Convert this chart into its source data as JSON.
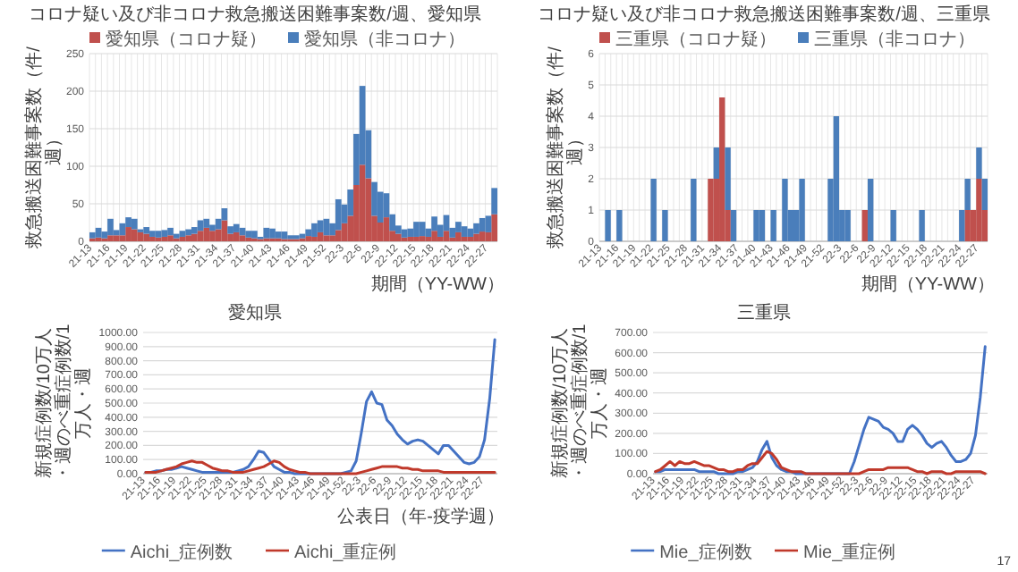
{
  "chart_data": [
    {
      "type": "bar",
      "title": "コロナ疑い及び非コロナ救急搬送困難事案数/週、愛知県",
      "xlabel": "期間（YY-WW）",
      "ylabel": "救急搬送困難事案数（件/週）",
      "stacked": true,
      "ylim": [
        0,
        250
      ],
      "yticks": [
        0,
        50,
        100,
        150,
        200,
        250
      ],
      "grid": true,
      "legend": "top left",
      "categories": [
        "21-13",
        null,
        null,
        "21-16",
        null,
        null,
        "21-19",
        null,
        null,
        "21-22",
        null,
        null,
        "21-25",
        null,
        null,
        "21-28",
        null,
        null,
        "21-31",
        null,
        null,
        "21-34",
        null,
        null,
        "21-37",
        null,
        null,
        "21-40",
        null,
        null,
        "21-43",
        null,
        null,
        "21-46",
        null,
        null,
        "21-49",
        null,
        null,
        "21-52",
        null,
        null,
        "22-3",
        null,
        null,
        "22-6",
        null,
        null,
        "22-9",
        null,
        null,
        "22-12",
        null,
        null,
        "22-15",
        null,
        null,
        "22-18",
        null,
        null,
        "22-21",
        null,
        null,
        "22-24",
        null,
        null,
        "22-27",
        null
      ],
      "series": [
        {
          "name": "愛知県（コロナ疑）",
          "color": "#c0504d",
          "values": [
            4,
            5,
            4,
            8,
            8,
            8,
            19,
            16,
            12,
            10,
            6,
            5,
            6,
            8,
            4,
            6,
            8,
            10,
            14,
            18,
            14,
            16,
            28,
            10,
            12,
            8,
            5,
            4,
            3,
            4,
            4,
            4,
            3,
            3,
            3,
            4,
            7,
            6,
            12,
            8,
            8,
            15,
            24,
            34,
            75,
            102,
            84,
            34,
            25,
            32,
            14,
            10,
            5,
            6,
            6,
            7,
            6,
            14,
            6,
            14,
            5,
            12,
            6,
            6,
            10,
            13,
            12,
            36
          ]
        },
        {
          "name": "愛知県（非コロナ）",
          "color": "#4a7ebb",
          "values": [
            8,
            13,
            9,
            22,
            7,
            16,
            13,
            14,
            4,
            9,
            8,
            9,
            9,
            10,
            6,
            8,
            8,
            9,
            14,
            12,
            8,
            14,
            16,
            10,
            11,
            10,
            9,
            10,
            3,
            14,
            13,
            9,
            10,
            5,
            5,
            6,
            9,
            18,
            16,
            22,
            16,
            41,
            25,
            35,
            68,
            105,
            64,
            45,
            41,
            32,
            22,
            11,
            11,
            11,
            20,
            19,
            11,
            19,
            16,
            21,
            13,
            14,
            14,
            11,
            14,
            18,
            22,
            35
          ]
        }
      ]
    },
    {
      "type": "bar",
      "title": "コロナ疑い及び非コロナ救急搬送困難事案数/週、三重県",
      "xlabel": "期間（YY-WW）",
      "ylabel": "救急搬送困難事案数（件/週）",
      "stacked": true,
      "ylim": [
        0,
        6
      ],
      "yticks": [
        0,
        1,
        2,
        3,
        4,
        5,
        6
      ],
      "grid": true,
      "legend": "top left",
      "categories": [
        "21-13",
        null,
        null,
        "21-16",
        null,
        null,
        "21-19",
        null,
        null,
        "21-22",
        null,
        null,
        "21-25",
        null,
        null,
        "21-28",
        null,
        null,
        "21-31",
        null,
        null,
        "21-34",
        null,
        null,
        "21-37",
        null,
        null,
        "21-40",
        null,
        null,
        "21-43",
        null,
        null,
        "21-46",
        null,
        null,
        "21-49",
        null,
        null,
        "21-52",
        null,
        null,
        "22-3",
        null,
        null,
        "22-6",
        null,
        null,
        "22-9",
        null,
        null,
        "22-12",
        null,
        null,
        "22-15",
        null,
        null,
        "22-18",
        null,
        null,
        "22-21",
        null,
        null,
        "22-24",
        null,
        null,
        "22-27",
        null
      ],
      "series": [
        {
          "name": "三重県（コロナ疑）",
          "color": "#c0504d",
          "values": [
            0,
            0,
            0,
            0,
            0,
            0,
            0,
            0,
            0,
            0,
            0,
            0,
            0,
            0,
            0,
            0,
            0,
            0,
            0,
            2,
            2,
            4.6,
            1,
            0,
            0,
            0,
            0,
            0,
            0,
            0,
            0,
            0,
            0,
            0,
            0,
            0,
            0,
            0,
            0,
            0,
            0,
            0,
            0,
            0,
            0,
            0,
            1,
            0,
            0,
            0,
            0,
            0,
            0,
            0,
            0,
            0,
            0,
            0,
            0,
            0,
            0,
            0,
            0,
            0,
            1,
            1,
            2,
            1
          ]
        },
        {
          "name": "三重県（非コロナ）",
          "color": "#4a7ebb",
          "values": [
            0,
            1,
            0,
            1,
            0,
            0,
            0,
            0,
            0,
            2,
            0,
            1,
            0,
            0,
            0,
            0,
            2,
            0,
            0,
            0,
            1,
            0,
            2,
            1,
            0,
            0,
            0,
            1,
            1,
            0,
            1,
            0,
            2,
            1,
            1,
            2,
            0,
            0,
            0,
            0,
            2,
            4,
            1,
            1,
            0,
            0,
            0,
            2,
            0,
            0,
            0,
            1,
            0,
            0,
            0,
            0,
            1,
            0,
            0,
            0,
            0,
            0,
            0,
            1,
            1,
            0,
            1,
            1
          ]
        }
      ]
    },
    {
      "type": "line",
      "title": "愛知県",
      "xlabel": "公表日（年-疫学週）",
      "ylabel": "新規症例数/10万人・週のべ重症例数/1万人・週",
      "ylim": [
        0,
        1000
      ],
      "yticks": [
        {
          "value": 0,
          "label": "0.00"
        },
        {
          "value": 100,
          "label": "100.00"
        },
        {
          "value": 200,
          "label": "200.00"
        },
        {
          "value": 300,
          "label": "300.00"
        },
        {
          "value": 400,
          "label": "400.00"
        },
        {
          "value": 500,
          "label": "500.00"
        },
        {
          "value": 600,
          "label": "600.00"
        },
        {
          "value": 700,
          "label": "700.00"
        },
        {
          "value": 800,
          "label": "800.00"
        },
        {
          "value": 900,
          "label": "900.00"
        },
        {
          "value": 1000,
          "label": "1000.00"
        }
      ],
      "grid": "y",
      "legend": "bottom",
      "categories": [
        "21-13",
        null,
        null,
        "21-16",
        null,
        null,
        "21-19",
        null,
        null,
        "21-22",
        null,
        null,
        "21-25",
        null,
        null,
        "21-28",
        null,
        null,
        "21-31",
        null,
        null,
        "21-34",
        null,
        null,
        "21-37",
        null,
        null,
        "21-40",
        null,
        null,
        "21-43",
        null,
        null,
        "21-46",
        null,
        null,
        "21-49",
        null,
        null,
        "21-52",
        null,
        null,
        "22-3",
        null,
        null,
        "22-6",
        null,
        null,
        "22-9",
        null,
        null,
        "22-12",
        null,
        null,
        "22-15",
        null,
        null,
        "22-18",
        null,
        null,
        "22-21",
        null,
        null,
        "22-24",
        null,
        null,
        "22-27",
        null,
        null
      ],
      "series": [
        {
          "name": "Aichi_症例数",
          "color": "#4472c4",
          "values": [
            10,
            10,
            20,
            20,
            30,
            30,
            40,
            50,
            40,
            30,
            20,
            10,
            10,
            10,
            10,
            10,
            10,
            10,
            20,
            30,
            50,
            100,
            160,
            150,
            100,
            50,
            30,
            10,
            10,
            0,
            0,
            0,
            0,
            0,
            0,
            0,
            0,
            0,
            0,
            10,
            20,
            90,
            290,
            510,
            580,
            500,
            490,
            380,
            340,
            280,
            240,
            210,
            230,
            240,
            230,
            200,
            170,
            140,
            200,
            200,
            160,
            120,
            80,
            70,
            80,
            120,
            240,
            530,
            950
          ]
        },
        {
          "name": "Aichi_重症例",
          "color": "#c0392b",
          "values": [
            10,
            10,
            10,
            20,
            30,
            40,
            50,
            70,
            80,
            90,
            80,
            80,
            60,
            40,
            30,
            20,
            20,
            10,
            10,
            10,
            20,
            30,
            40,
            50,
            70,
            90,
            80,
            50,
            30,
            20,
            10,
            10,
            0,
            0,
            0,
            0,
            0,
            0,
            0,
            0,
            0,
            0,
            10,
            20,
            30,
            40,
            50,
            50,
            50,
            50,
            40,
            40,
            30,
            30,
            20,
            20,
            20,
            20,
            10,
            10,
            10,
            10,
            10,
            10,
            10,
            10,
            10,
            10,
            10
          ]
        }
      ]
    },
    {
      "type": "line",
      "title": "三重県",
      "ylabel": "新規症例数/10万人・週のべ重症例数/1万人・週",
      "ylim": [
        0,
        700
      ],
      "yticks": [
        {
          "value": 0,
          "label": "0.00"
        },
        {
          "value": 100,
          "label": "100.00"
        },
        {
          "value": 200,
          "label": "200.00"
        },
        {
          "value": 300,
          "label": "300.00"
        },
        {
          "value": 400,
          "label": "400.00"
        },
        {
          "value": 500,
          "label": "500.00"
        },
        {
          "value": 600,
          "label": "600.00"
        },
        {
          "value": 700,
          "label": "700.00"
        }
      ],
      "grid": "y",
      "legend": "bottom",
      "annotations": [
        "17"
      ],
      "categories": [
        "21-13",
        null,
        null,
        "21-16",
        null,
        null,
        "21-19",
        null,
        null,
        "21-22",
        null,
        null,
        "21-25",
        null,
        null,
        "21-28",
        null,
        null,
        "21-31",
        null,
        null,
        "21-34",
        null,
        null,
        "21-37",
        null,
        null,
        "21-40",
        null,
        null,
        "21-43",
        null,
        null,
        "21-46",
        null,
        null,
        "21-49",
        null,
        null,
        "21-52",
        null,
        null,
        "22-3",
        null,
        null,
        "22-6",
        null,
        null,
        "22-9",
        null,
        null,
        "22-12",
        null,
        null,
        "22-15",
        null,
        null,
        "22-18",
        null,
        null,
        "22-21",
        null,
        null,
        "22-24",
        null,
        null,
        "22-27",
        null,
        null
      ],
      "series": [
        {
          "name": "Mie_症例数",
          "color": "#4472c4",
          "values": [
            10,
            10,
            20,
            20,
            20,
            20,
            20,
            20,
            20,
            10,
            10,
            10,
            10,
            0,
            0,
            0,
            0,
            10,
            10,
            20,
            30,
            60,
            120,
            160,
            80,
            40,
            20,
            10,
            10,
            0,
            0,
            0,
            0,
            0,
            0,
            0,
            0,
            0,
            0,
            0,
            0,
            60,
            140,
            220,
            280,
            270,
            260,
            230,
            220,
            200,
            160,
            160,
            220,
            240,
            220,
            190,
            150,
            130,
            150,
            160,
            130,
            90,
            60,
            60,
            70,
            100,
            190,
            380,
            630
          ]
        },
        {
          "name": "Mie_重症例",
          "color": "#c0392b",
          "values": [
            10,
            20,
            40,
            60,
            40,
            60,
            50,
            50,
            60,
            50,
            40,
            40,
            30,
            20,
            20,
            10,
            10,
            20,
            20,
            40,
            50,
            50,
            80,
            110,
            100,
            70,
            30,
            20,
            10,
            10,
            10,
            0,
            0,
            0,
            0,
            0,
            0,
            0,
            0,
            0,
            0,
            0,
            0,
            10,
            20,
            20,
            20,
            20,
            30,
            30,
            30,
            30,
            30,
            20,
            10,
            10,
            0,
            10,
            10,
            10,
            0,
            0,
            10,
            10,
            10,
            10,
            10,
            10,
            0
          ]
        }
      ]
    }
  ]
}
